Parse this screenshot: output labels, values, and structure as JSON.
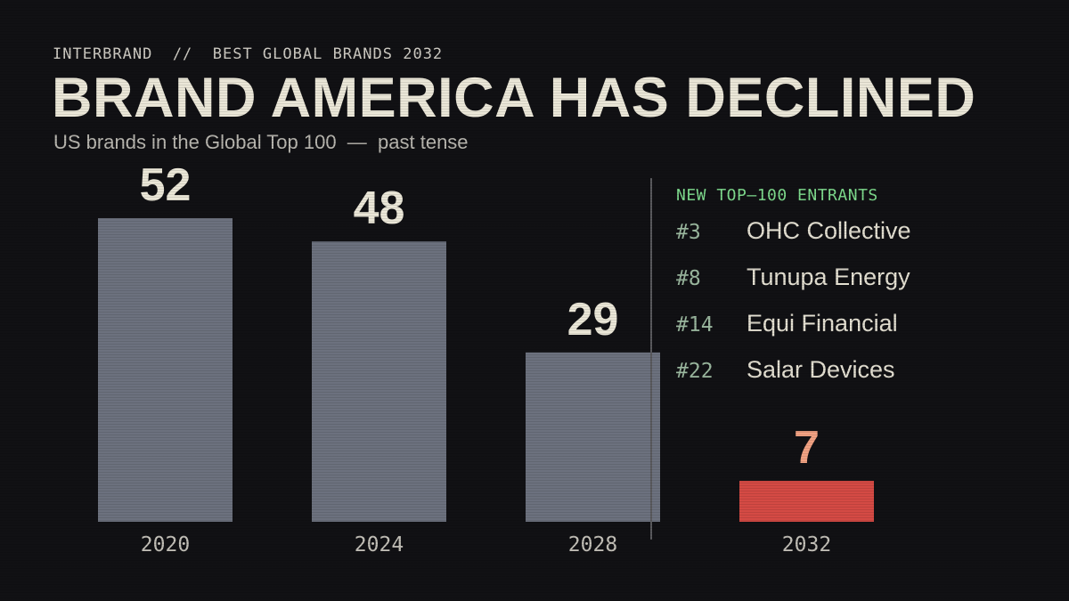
{
  "header": {
    "kicker": "INTERBRAND  //  BEST GLOBAL BRANDS 2032",
    "title": "BRAND AMERICA HAS DECLINED",
    "subtitle": "US brands in the Global Top 100  —  past tense"
  },
  "colors": {
    "background": "#111114",
    "bar": "#6c717e",
    "bar_highlight": "#d44a44",
    "value_label": "#ebe7d8",
    "value_label_highlight": "#f2a283",
    "entrants_heading": "#7fdc8e",
    "divider": "#5a5a5e"
  },
  "chart_data": {
    "type": "bar",
    "title": "BRAND AMERICA HAS DECLINED",
    "subtitle": "US brands in the Global Top 100  —  past tense",
    "categories": [
      "2020",
      "2024",
      "2028",
      "2032"
    ],
    "values": [
      52,
      48,
      29,
      7
    ],
    "highlight_index": 3,
    "data_labels": [
      "52",
      "48",
      "29",
      "7"
    ],
    "xlabel": "",
    "ylabel": "",
    "ylim": [
      0,
      52
    ],
    "grid": false,
    "axes_visible": false
  },
  "entrants": {
    "heading": "NEW TOP–100 ENTRANTS",
    "items": [
      {
        "rank": "#3",
        "name": "OHC Collective"
      },
      {
        "rank": "#8",
        "name": "Tunupa Energy"
      },
      {
        "rank": "#14",
        "name": "Equi Financial"
      },
      {
        "rank": "#22",
        "name": "Salar Devices"
      }
    ]
  }
}
